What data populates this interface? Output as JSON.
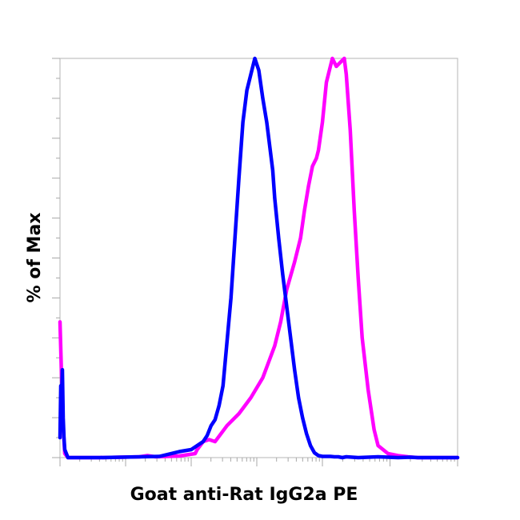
{
  "chart_data": {
    "type": "line",
    "title": "",
    "xlabel": "Goat anti-Rat IgG2a PE",
    "ylabel": "% of Max",
    "x_scale": "biexponential",
    "xlim": [
      0,
      1
    ],
    "ylim": [
      0,
      100
    ],
    "grid": false,
    "legend": "none",
    "colors": {
      "frame": "#c0c0c0",
      "ticks": "#a8a8a8"
    },
    "series": [
      {
        "color": "#ff00ff",
        "x": [
          0.0,
          0.004,
          0.008,
          0.012,
          0.02,
          0.1,
          0.2,
          0.22,
          0.24,
          0.3,
          0.34,
          0.345,
          0.36,
          0.375,
          0.39,
          0.42,
          0.45,
          0.465,
          0.48,
          0.51,
          0.525,
          0.54,
          0.555,
          0.57,
          0.59,
          0.605,
          0.615,
          0.625,
          0.635,
          0.645,
          0.65,
          0.66,
          0.67,
          0.685,
          0.695,
          0.705,
          0.715,
          0.72,
          0.73,
          0.74,
          0.75,
          0.76,
          0.775,
          0.79,
          0.8,
          0.825,
          0.85,
          0.875,
          0.9,
          0.95,
          1.0
        ],
        "y": [
          34.0,
          20.0,
          8.0,
          1.0,
          0.0,
          0.0,
          0.2,
          0.5,
          0.2,
          0.4,
          1.0,
          2.0,
          4.0,
          4.5,
          4.0,
          8.0,
          11.0,
          13.0,
          15.0,
          20.0,
          24.0,
          28.0,
          34.0,
          42.0,
          49.0,
          55.0,
          62.0,
          68.0,
          73.0,
          75.0,
          77.0,
          84.0,
          94.0,
          100.0,
          98.0,
          99.0,
          100.0,
          96.0,
          82.0,
          62.0,
          45.0,
          30.0,
          17.0,
          7.0,
          3.0,
          1.0,
          0.5,
          0.2,
          0.0,
          0.0,
          0.0
        ]
      },
      {
        "color": "#0000ff",
        "x": [
          0.0,
          0.002,
          0.004,
          0.006,
          0.008,
          0.01,
          0.012,
          0.016,
          0.02,
          0.1,
          0.25,
          0.3,
          0.33,
          0.36,
          0.37,
          0.38,
          0.39,
          0.4,
          0.41,
          0.42,
          0.43,
          0.44,
          0.45,
          0.46,
          0.47,
          0.48,
          0.49,
          0.5,
          0.51,
          0.52,
          0.53,
          0.535,
          0.54,
          0.545,
          0.55,
          0.56,
          0.57,
          0.58,
          0.59,
          0.6,
          0.61,
          0.62,
          0.63,
          0.64,
          0.65,
          0.66,
          0.67,
          0.68,
          0.69,
          0.7,
          0.71,
          0.72,
          0.75,
          0.8,
          0.85,
          0.88,
          0.9,
          1.0
        ],
        "y": [
          5.0,
          18.0,
          15.0,
          22.0,
          10.0,
          5.0,
          2.0,
          1.0,
          0.0,
          0.0,
          0.3,
          1.5,
          2.0,
          4.0,
          5.5,
          8.0,
          9.5,
          13.0,
          18.0,
          29.0,
          40.0,
          55.0,
          70.0,
          84.0,
          92.0,
          96.0,
          100.0,
          97.0,
          90.0,
          84.0,
          76.0,
          72.0,
          65.0,
          60.0,
          55.0,
          46.0,
          38.0,
          30.0,
          22.0,
          15.0,
          10.0,
          6.0,
          3.0,
          1.2,
          0.5,
          0.3,
          0.3,
          0.3,
          0.2,
          0.2,
          0.0,
          0.2,
          0.0,
          0.2,
          0.0,
          0.1,
          0.0,
          0.0
        ]
      }
    ]
  }
}
